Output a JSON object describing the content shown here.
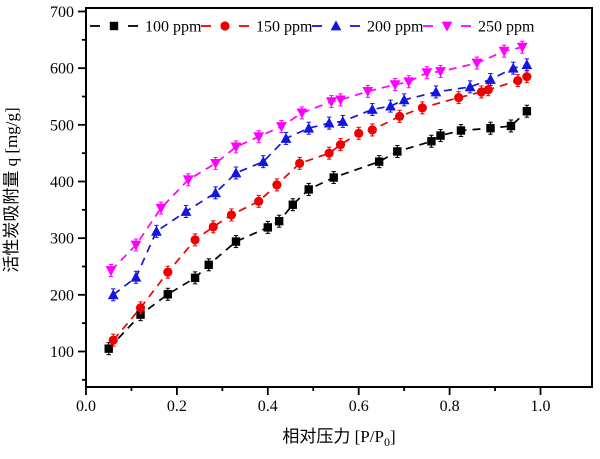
{
  "figure": {
    "description": "Activated-carbon adsorption isotherm chart with four ppm concentration series",
    "background_color": "#ffffff",
    "axis_color": "#000000"
  },
  "chart_data": {
    "type": "line",
    "title": "",
    "xlabel": "相对压力 [P/P0]",
    "xlabel_prefix": "相对压力 [P/P",
    "xlabel_sub": "0",
    "xlabel_suffix": "]",
    "ylabel": "活性炭吸附量 q [mg/g]",
    "xlim": [
      0.0,
      1.1
    ],
    "ylim": [
      35,
      706
    ],
    "x_major_ticks": [
      0.0,
      0.2,
      0.4,
      0.6,
      0.8,
      1.0
    ],
    "x_major_tick_labels": [
      "0.0",
      "0.2",
      "0.4",
      "0.6",
      "0.8",
      "1.0"
    ],
    "x_minor_tick_step": 0.1,
    "y_major_ticks": [
      100,
      200,
      300,
      400,
      500,
      600,
      700
    ],
    "y_major_tick_labels": [
      "100",
      "200",
      "300",
      "400",
      "500",
      "600",
      "700"
    ],
    "y_minor_tick_step": 50,
    "grid": false,
    "line_style": "dashed",
    "error_bars": "small vertical error bars on data points",
    "legend_position": "top inside, horizontal row",
    "series": [
      {
        "name": "100 ppm",
        "color": "#000000",
        "marker": "square",
        "x": [
          0.05,
          0.12,
          0.18,
          0.24,
          0.27,
          0.33,
          0.4,
          0.425,
          0.455,
          0.49,
          0.545,
          0.645,
          0.685,
          0.76,
          0.78,
          0.825,
          0.89,
          0.935,
          0.97
        ],
        "y": [
          105,
          165,
          201,
          230,
          253,
          294,
          319,
          330,
          359,
          386,
          407,
          435,
          453,
          471,
          481,
          490,
          494,
          498,
          524
        ]
      },
      {
        "name": "150 ppm",
        "color": "#ee0000",
        "marker": "circle",
        "x": [
          0.06,
          0.12,
          0.18,
          0.24,
          0.28,
          0.32,
          0.38,
          0.42,
          0.47,
          0.535,
          0.56,
          0.6,
          0.63,
          0.69,
          0.74,
          0.82,
          0.87,
          0.885,
          0.95,
          0.97
        ],
        "y": [
          120,
          177,
          240,
          297,
          320,
          341,
          365,
          394,
          432,
          450,
          465,
          485,
          491,
          515,
          530,
          548,
          558,
          562,
          578,
          585
        ]
      },
      {
        "name": "200 ppm",
        "color": "#1515e0",
        "marker": "triangle-up",
        "x": [
          0.06,
          0.11,
          0.155,
          0.22,
          0.285,
          0.33,
          0.39,
          0.44,
          0.49,
          0.535,
          0.565,
          0.63,
          0.67,
          0.7,
          0.77,
          0.845,
          0.89,
          0.94,
          0.97
        ],
        "y": [
          200,
          231,
          312,
          347,
          380,
          415,
          435,
          476,
          494,
          503,
          506,
          527,
          533,
          544,
          558,
          567,
          580,
          600,
          606
        ]
      },
      {
        "name": "250 ppm",
        "color": "#ff00ff",
        "marker": "triangle-down",
        "x": [
          0.055,
          0.11,
          0.165,
          0.225,
          0.285,
          0.33,
          0.38,
          0.43,
          0.475,
          0.54,
          0.56,
          0.62,
          0.68,
          0.71,
          0.75,
          0.78,
          0.86,
          0.92,
          0.96
        ],
        "y": [
          243,
          288,
          353,
          403,
          432,
          461,
          479,
          497,
          521,
          541,
          544,
          559,
          571,
          576,
          592,
          594,
          609,
          630,
          637
        ]
      }
    ]
  }
}
